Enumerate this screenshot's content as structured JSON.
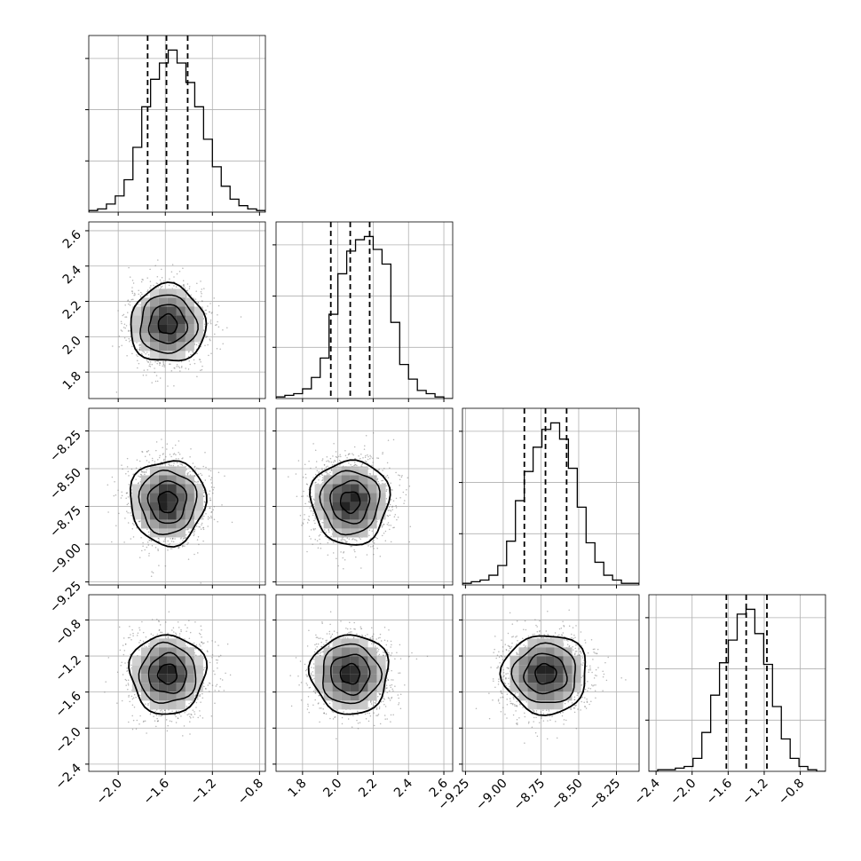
{
  "chart_data": {
    "type": "corner",
    "variables": [
      {
        "range": [
          -2.25,
          -0.75
        ],
        "ticks": [
          -2.0,
          -1.6,
          -1.2,
          -0.8
        ],
        "tick_labels": [
          "−2.0",
          "−1.6",
          "−1.2",
          "−0.8"
        ],
        "quantiles": [
          -1.75,
          -1.59,
          -1.41
        ],
        "hist": [
          1,
          2,
          5,
          10,
          20,
          40,
          65,
          82,
          92,
          100,
          92,
          80,
          65,
          45,
          28,
          16,
          8,
          4,
          2,
          1
        ]
      },
      {
        "range": [
          1.65,
          2.65
        ],
        "ticks": [
          1.8,
          2.0,
          2.2,
          2.4,
          2.6
        ],
        "tick_labels": [
          "1.8",
          "2.0",
          "2.2",
          "2.4",
          "2.6"
        ],
        "quantiles": [
          1.96,
          2.07,
          2.18
        ],
        "hist": [
          1,
          2,
          3,
          6,
          13,
          25,
          52,
          77,
          91,
          98,
          100,
          92,
          83,
          47,
          21,
          12,
          5,
          3,
          1,
          0
        ]
      },
      {
        "range": [
          -9.27,
          -8.1
        ],
        "ticks": [
          -9.25,
          -9.0,
          -8.75,
          -8.5,
          -8.25
        ],
        "tick_labels": [
          "−9.25",
          "−9.00",
          "−8.75",
          "−8.50",
          "−8.25"
        ],
        "quantiles": [
          -8.86,
          -8.72,
          -8.58
        ],
        "hist": [
          1,
          2,
          3,
          6,
          12,
          27,
          52,
          70,
          85,
          96,
          100,
          90,
          72,
          48,
          26,
          14,
          6,
          3,
          1,
          1
        ]
      },
      {
        "range": [
          -2.48,
          -0.52
        ],
        "ticks": [
          -2.4,
          -2.0,
          -1.6,
          -1.2,
          -0.8
        ],
        "tick_labels": [
          "−2.4",
          "−2.0",
          "−1.6",
          "−1.2",
          "−0.8"
        ],
        "quantiles": [
          -1.62,
          -1.4,
          -1.17
        ],
        "hist": [
          0,
          1,
          1,
          2,
          3,
          8,
          24,
          47,
          67,
          81,
          97,
          100,
          85,
          66,
          40,
          20,
          8,
          3,
          1,
          0
        ]
      }
    ],
    "hist_y_ticks": [
      0.29,
      0.58,
      0.87
    ],
    "centers": [
      -1.58,
      2.07,
      -8.72,
      -1.4
    ],
    "sigmas": [
      0.16,
      0.11,
      0.14,
      0.22
    ],
    "scatter_seed": 7
  }
}
